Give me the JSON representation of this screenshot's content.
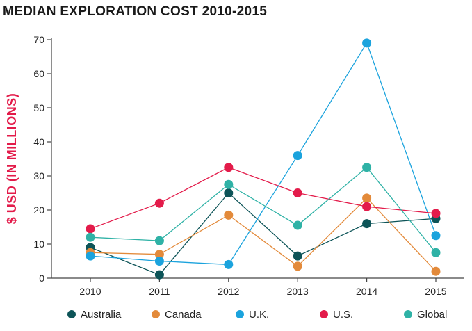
{
  "chart_data": {
    "type": "line",
    "title": "MEDIAN EXPLORATION COST 2010-2015",
    "xlabel": "",
    "ylabel": "$ USD (IN MILLIONS)",
    "ylabel_color": "#e31b4a",
    "categories": [
      "2010",
      "2011",
      "2012",
      "2013",
      "2014",
      "2015"
    ],
    "ylim": [
      0,
      70
    ],
    "yticks": [
      "0",
      "10",
      "20",
      "30",
      "40",
      "50",
      "60",
      "70"
    ],
    "grid": false,
    "legend_position": "bottom",
    "series": [
      {
        "name": "Australia",
        "color": "#0d5458",
        "values": [
          9,
          1,
          25,
          6.5,
          16,
          17.5
        ]
      },
      {
        "name": "Canada",
        "color": "#e38a3a",
        "values": [
          7.5,
          7,
          18.5,
          3.5,
          23.5,
          2
        ]
      },
      {
        "name": "U.K.",
        "color": "#1ba3dd",
        "values": [
          6.5,
          5,
          4,
          36,
          69,
          12.5
        ]
      },
      {
        "name": "U.S.",
        "color": "#e31b4a",
        "values": [
          14.5,
          22,
          32.5,
          25,
          21,
          19
        ]
      },
      {
        "name": "Global",
        "color": "#2fb2a6",
        "values": [
          12,
          11,
          27.5,
          15.5,
          32.5,
          7.5
        ]
      }
    ]
  }
}
